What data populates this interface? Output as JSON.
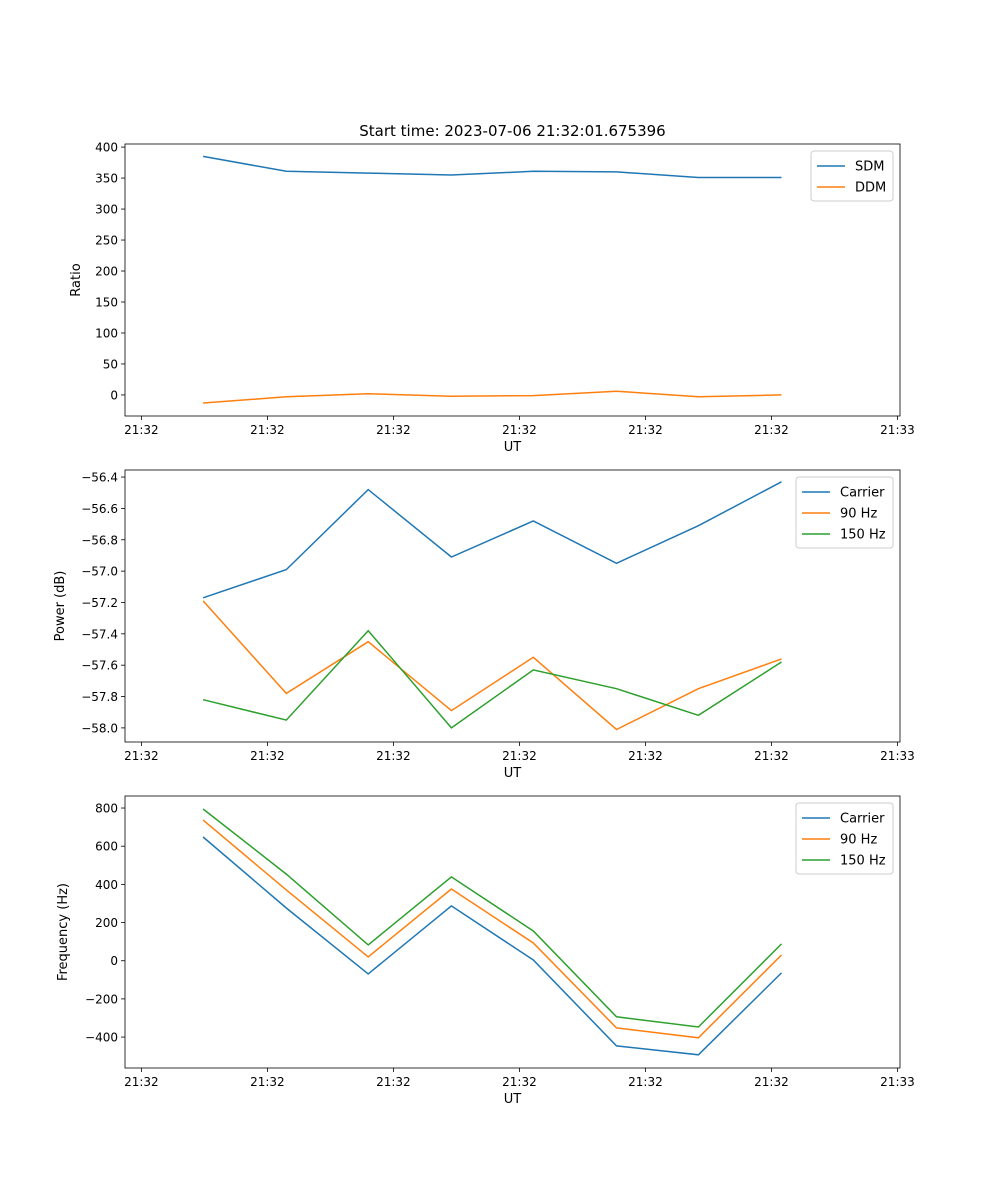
{
  "chart_data": [
    {
      "type": "line",
      "title": "Start time: 2023-07-06 21:32:01.675396",
      "xlabel": "UT",
      "ylabel": "Ratio",
      "x_seconds": [
        4.9,
        11.5,
        18.0,
        24.6,
        31.1,
        37.7,
        44.2,
        50.8
      ],
      "xlim": [
        -1.3,
        60.2
      ],
      "x_ticks": [
        0,
        10,
        20,
        30,
        40,
        50,
        60
      ],
      "x_tick_labels": [
        "21:32",
        "21:32",
        "21:32",
        "21:32",
        "21:32",
        "21:32",
        "21:33"
      ],
      "ylim": [
        -34,
        405
      ],
      "y_ticks": [
        0,
        50,
        100,
        150,
        200,
        250,
        300,
        350,
        400
      ],
      "y_tick_labels": [
        "0",
        "50",
        "100",
        "150",
        "200",
        "250",
        "300",
        "350",
        "400"
      ],
      "legend": "top-right",
      "series": [
        {
          "name": "SDM",
          "color": "#1f77b4",
          "values": [
            385,
            361,
            358,
            355,
            361,
            360,
            351,
            351
          ]
        },
        {
          "name": "DDM",
          "color": "#ff7f0e",
          "values": [
            -13,
            -3,
            2,
            -2,
            -1,
            6,
            -3,
            0
          ]
        }
      ]
    },
    {
      "type": "line",
      "xlabel": "UT",
      "ylabel": "Power (dB)",
      "x_seconds": [
        4.9,
        11.5,
        18.0,
        24.6,
        31.1,
        37.7,
        44.2,
        50.8
      ],
      "xlim": [
        -1.3,
        60.2
      ],
      "x_ticks": [
        0,
        10,
        20,
        30,
        40,
        50,
        60
      ],
      "x_tick_labels": [
        "21:32",
        "21:32",
        "21:32",
        "21:32",
        "21:32",
        "21:32",
        "21:33"
      ],
      "ylim": [
        -58.09,
        -56.355
      ],
      "y_ticks": [
        -58.0,
        -57.8,
        -57.6,
        -57.4,
        -57.2,
        -57.0,
        -56.8,
        -56.6,
        -56.4
      ],
      "y_tick_labels": [
        "−58.0",
        "−57.8",
        "−57.6",
        "−57.4",
        "−57.2",
        "−57.0",
        "−56.8",
        "−56.6",
        "−56.4"
      ],
      "legend": "top-right",
      "series": [
        {
          "name": "Carrier",
          "color": "#1f77b4",
          "values": [
            -57.17,
            -56.99,
            -56.48,
            -56.91,
            -56.68,
            -56.95,
            -56.71,
            -56.43
          ]
        },
        {
          "name": "90 Hz",
          "color": "#ff7f0e",
          "values": [
            -57.19,
            -57.78,
            -57.45,
            -57.89,
            -57.55,
            -58.01,
            -57.75,
            -57.56
          ]
        },
        {
          "name": "150 Hz",
          "color": "#2ca02c",
          "values": [
            -57.82,
            -57.95,
            -57.38,
            -58.0,
            -57.63,
            -57.75,
            -57.92,
            -57.58
          ]
        }
      ]
    },
    {
      "type": "line",
      "xlabel": "UT",
      "ylabel": "Frequency (Hz)",
      "x_seconds": [
        4.9,
        11.5,
        18.0,
        24.6,
        31.1,
        37.7,
        44.2,
        50.8
      ],
      "xlim": [
        -1.3,
        60.2
      ],
      "x_ticks": [
        0,
        10,
        20,
        30,
        40,
        50,
        60
      ],
      "x_tick_labels": [
        "21:32",
        "21:32",
        "21:32",
        "21:32",
        "21:32",
        "21:32",
        "21:33"
      ],
      "ylim": [
        -562,
        863
      ],
      "y_ticks": [
        -400,
        -200,
        0,
        200,
        400,
        600,
        800
      ],
      "y_tick_labels": [
        "−400",
        "−200",
        "0",
        "200",
        "400",
        "600",
        "800"
      ],
      "legend": "top-right",
      "series": [
        {
          "name": "Carrier",
          "color": "#1f77b4",
          "values": [
            648,
            276,
            -69,
            287,
            4,
            -446,
            -493,
            -64
          ]
        },
        {
          "name": "90 Hz",
          "color": "#ff7f0e",
          "values": [
            737,
            371,
            20,
            376,
            93,
            -352,
            -404,
            30
          ]
        },
        {
          "name": "150 Hz",
          "color": "#2ca02c",
          "values": [
            795,
            454,
            83,
            439,
            156,
            -294,
            -347,
            88
          ]
        }
      ]
    }
  ]
}
